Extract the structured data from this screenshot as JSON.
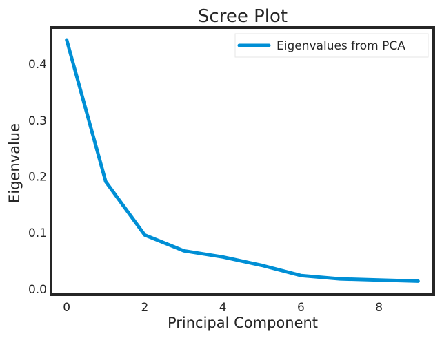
{
  "chart_data": {
    "type": "line",
    "title": "Scree Plot",
    "xlabel": "Principal Component",
    "ylabel": "Eigenvalue",
    "xlim": [
      -0.4,
      9.4
    ],
    "ylim": [
      -0.01,
      0.465
    ],
    "xticks": [
      0,
      2,
      4,
      6,
      8
    ],
    "xtick_labels": [
      "0",
      "2",
      "4",
      "6",
      "8"
    ],
    "yticks": [
      0.0,
      0.1,
      0.2,
      0.3,
      0.4
    ],
    "ytick_labels": [
      "0.0",
      "0.1",
      "0.2",
      "0.3",
      "0.4"
    ],
    "grid": false,
    "legend_position": "top-right",
    "series": [
      {
        "name": "Eigenvalues from PCA",
        "color": "#008fd5",
        "x": [
          0,
          1,
          2,
          3,
          4,
          5,
          6,
          7,
          8,
          9
        ],
        "y": [
          0.443,
          0.191,
          0.096,
          0.068,
          0.057,
          0.042,
          0.024,
          0.018,
          0.016,
          0.014
        ]
      }
    ]
  }
}
